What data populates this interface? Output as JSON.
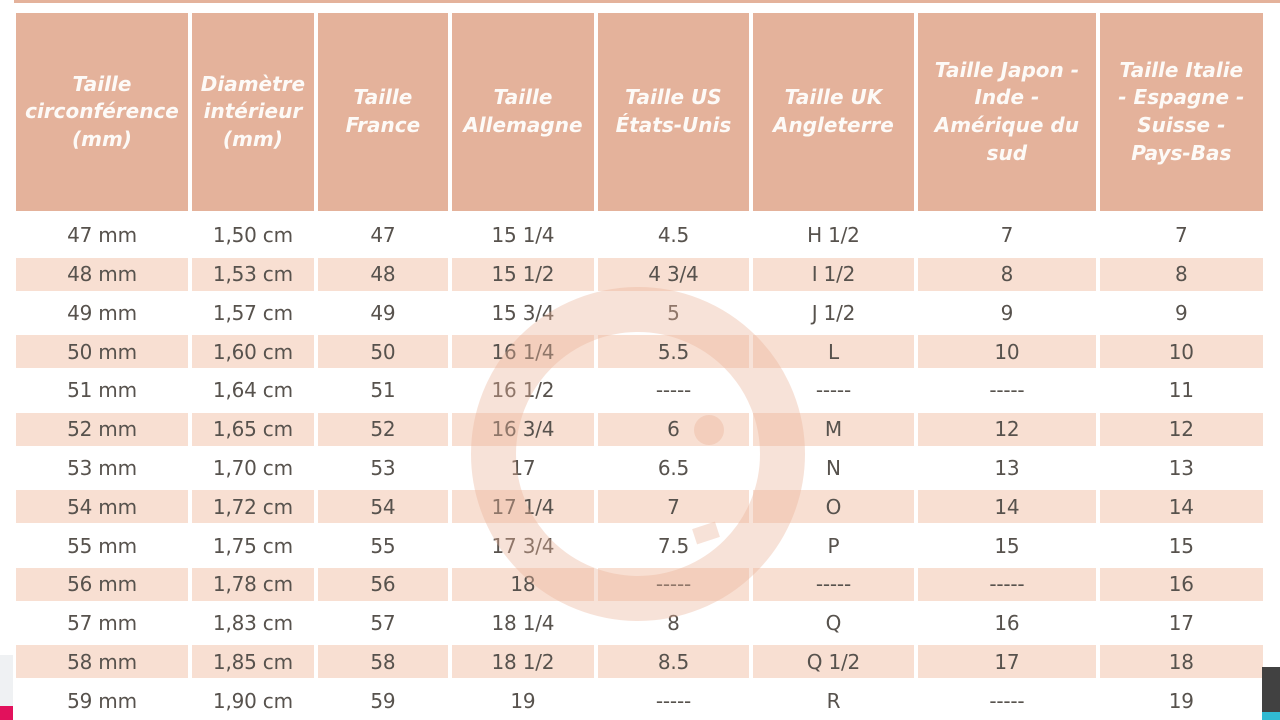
{
  "table": {
    "headers": [
      "Taille circonférence (mm)",
      "Diamètre intérieur (mm)",
      "Taille France",
      "Taille Allemagne",
      "Taille US États-Unis",
      "Taille UK Angleterre",
      "Taille Japon - Inde - Amérique du sud",
      "Taille Italie - Espagne - Suisse - Pays-Bas"
    ],
    "rows": [
      [
        "47 mm",
        "1,50 cm",
        "47",
        "15 1/4",
        "4.5",
        "H 1/2",
        "7",
        "7"
      ],
      [
        "48 mm",
        "1,53 cm",
        "48",
        "15 1/2",
        "4 3/4",
        "I 1/2",
        "8",
        "8"
      ],
      [
        "49 mm",
        "1,57 cm",
        "49",
        "15 3/4",
        "5",
        "J 1/2",
        "9",
        "9"
      ],
      [
        "50 mm",
        "1,60 cm",
        "50",
        "16 1/4",
        "5.5",
        "L",
        "10",
        "10"
      ],
      [
        "51 mm",
        "1,64 cm",
        "51",
        "16 1/2",
        "-----",
        "-----",
        "-----",
        "11"
      ],
      [
        "52 mm",
        "1,65 cm",
        "52",
        "16 3/4",
        "6",
        "M",
        "12",
        "12"
      ],
      [
        "53 mm",
        "1,70 cm",
        "53",
        "17",
        "6.5",
        "N",
        "13",
        "13"
      ],
      [
        "54 mm",
        "1,72 cm",
        "54",
        "17 1/4",
        "7",
        "O",
        "14",
        "14"
      ],
      [
        "55 mm",
        "1,75 cm",
        "55",
        "17 3/4",
        "7.5",
        "P",
        "15",
        "15"
      ],
      [
        "56 mm",
        "1,78 cm",
        "56",
        "18",
        "-----",
        "-----",
        "-----",
        "16"
      ],
      [
        "57 mm",
        "1,83 cm",
        "57",
        "18 1/4",
        "8",
        "Q",
        "16",
        "17"
      ],
      [
        "58 mm",
        "1,85 cm",
        "58",
        "18 1/2",
        "8.5",
        "Q 1/2",
        "17",
        "18"
      ],
      [
        "59 mm",
        "1,90 cm",
        "59",
        "19",
        "-----",
        "R",
        "-----",
        "19"
      ]
    ]
  },
  "watermark": {
    "icon": "g-monogram-watermark"
  },
  "colors": {
    "header_bg": "#e4b29b",
    "row_alt_bg": "#f8dfd2",
    "body_text": "#57524d",
    "header_text": "#fdfaf7",
    "watermark_rgba": "rgba(233,178,152,0.38)",
    "accent_pink": "#e2115c",
    "accent_cyan": "#31bad2",
    "accent_dark": "#414141",
    "side_grey": "#eff1f3"
  }
}
